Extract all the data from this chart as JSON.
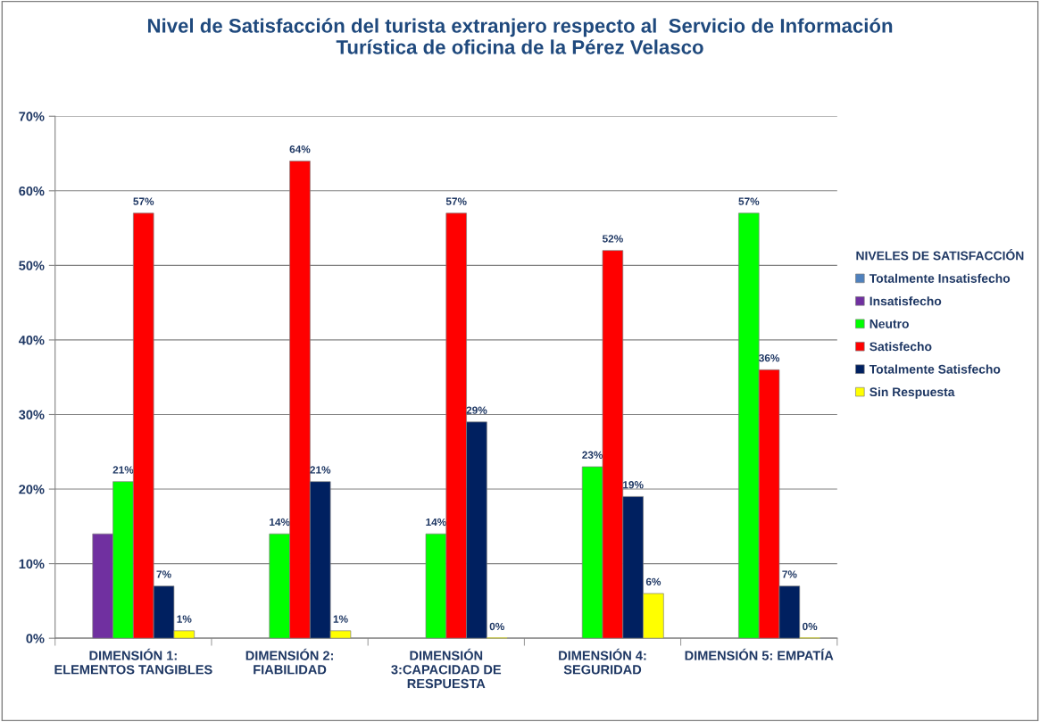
{
  "chart_data": {
    "type": "bar",
    "title": "Nivel de Satisfacción del turista extranjero respecto al  Servicio de Información\nTurística de oficina de la Pérez Velasco",
    "categories": [
      "DIMENSIÓN 1:\nELEMENTOS TANGIBLES",
      "DIMENSIÓN 2:\nFIABILIDAD",
      "DIMENSIÓN\n3:CAPACIDAD DE\nRESPUESTA",
      "DIMENSIÓN 4:\nSEGURIDAD",
      "DIMENSIÓN 5: EMPATÍA"
    ],
    "series": [
      {
        "name": "Totalmente Insatisfecho",
        "color": "#4f81bd",
        "values": [
          null,
          null,
          null,
          null,
          null
        ],
        "value_labels": [
          null,
          null,
          null,
          null,
          null
        ]
      },
      {
        "name": "Insatisfecho",
        "color": "#7030a0",
        "values": [
          14,
          null,
          null,
          null,
          null
        ],
        "value_labels": [
          null,
          null,
          null,
          null,
          null
        ]
      },
      {
        "name": "Neutro",
        "color": "#00ff00",
        "values": [
          21,
          14,
          14,
          23,
          57
        ],
        "value_labels": [
          "21%",
          "14%",
          "14%",
          "23%",
          "57%"
        ]
      },
      {
        "name": "Satisfecho",
        "color": "#ff0000",
        "values": [
          57,
          64,
          57,
          52,
          36
        ],
        "value_labels": [
          "57%",
          "64%",
          "57%",
          "52%",
          "36%"
        ]
      },
      {
        "name": "Totalmente Satisfecho",
        "color": "#002060",
        "values": [
          7,
          21,
          29,
          19,
          7
        ],
        "value_labels": [
          "7%",
          "21%",
          "29%",
          "19%",
          "7%"
        ]
      },
      {
        "name": "Sin Respuesta",
        "color": "#ffff00",
        "values": [
          1,
          1,
          0,
          6,
          0
        ],
        "value_labels": [
          "1%",
          "1%",
          "0%",
          "6%",
          "0%"
        ]
      }
    ],
    "legend_title": "NIVELES DE SATISFACCIÓN",
    "legend": "right",
    "grid": "y",
    "ylim": [
      0,
      70
    ],
    "yticks": [
      {
        "value": 0,
        "label": "0%"
      },
      {
        "value": 10,
        "label": "10%"
      },
      {
        "value": 20,
        "label": "20%"
      },
      {
        "value": 30,
        "label": "30%"
      },
      {
        "value": 40,
        "label": "40%"
      },
      {
        "value": 50,
        "label": "50%"
      },
      {
        "value": 60,
        "label": "60%"
      },
      {
        "value": 70,
        "label": "70%"
      }
    ]
  }
}
